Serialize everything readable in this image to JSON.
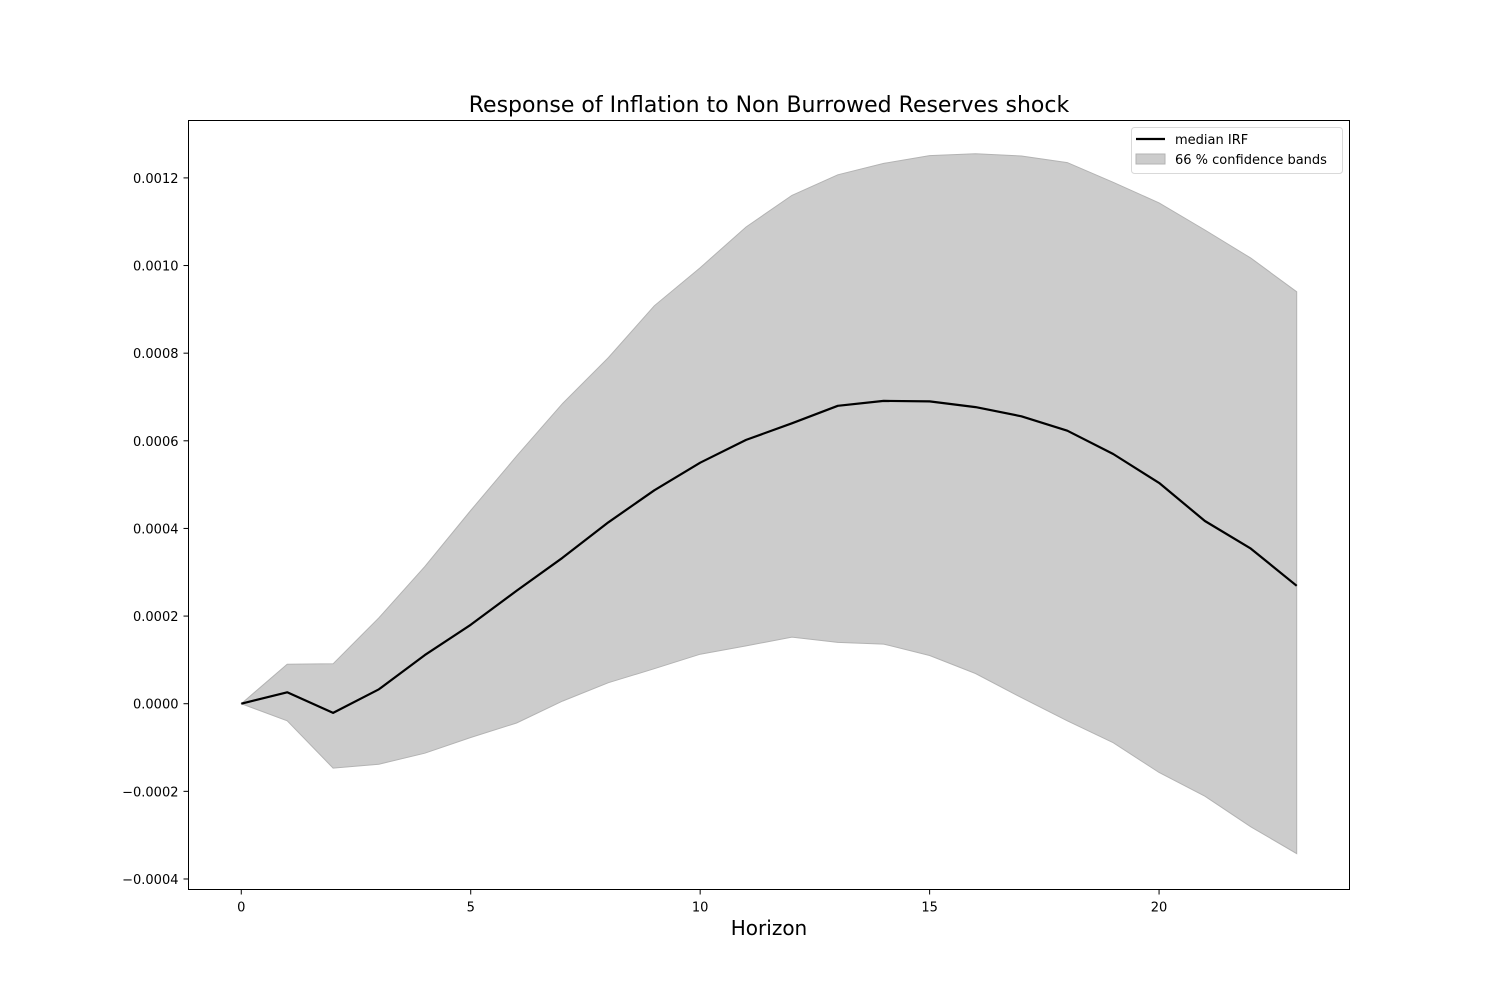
{
  "chart_data": {
    "type": "line",
    "title": "Response of Inflation to Non Burrowed Reserves shock",
    "xlabel": "Horizon",
    "ylabel": "",
    "xlim": [
      -1.15,
      24.15
    ],
    "ylim": [
      -0.000424,
      0.001331
    ],
    "grid": false,
    "legend_placement": "top-right",
    "x": [
      0,
      1,
      2,
      3,
      4,
      5,
      6,
      7,
      8,
      9,
      10,
      11,
      12,
      13,
      14,
      15,
      16,
      17,
      18,
      19,
      20,
      21,
      22,
      23
    ],
    "series": [
      {
        "name": "median IRF",
        "kind": "line",
        "color": "#000000",
        "values": [
          0.0,
          2.6e-05,
          -2.1e-05,
          3.3e-05,
          0.000111,
          0.00018,
          0.000258,
          0.000333,
          0.000414,
          0.000487,
          0.00055,
          0.000602,
          0.00064,
          0.00068,
          0.000691,
          0.00069,
          0.000677,
          0.000656,
          0.000623,
          0.00057,
          0.000504,
          0.000417,
          0.000354,
          0.000269
        ]
      },
      {
        "name": "66 % confidence bands",
        "kind": "band",
        "color": "#cccccc",
        "edge_color": "#b3b3b3",
        "lower": [
          0.0,
          -3.9e-05,
          -0.000147,
          -0.000138,
          -0.000113,
          -7.7e-05,
          -4.4e-05,
          6e-06,
          4.8e-05,
          8e-05,
          0.000113,
          0.000132,
          0.000152,
          0.00014,
          0.000136,
          0.00011,
          6.9e-05,
          1.4e-05,
          -3.9e-05,
          -8.9e-05,
          -0.000157,
          -0.000211,
          -0.000281,
          -0.000342
        ],
        "upper": [
          0.0,
          9e-05,
          9.1e-05,
          0.000196,
          0.000313,
          0.000441,
          0.000565,
          0.000685,
          0.00079,
          0.000908,
          0.000995,
          0.001088,
          0.00116,
          0.001207,
          0.001233,
          0.001251,
          0.001255,
          0.00125,
          0.001235,
          0.00119,
          0.001143,
          0.001081,
          0.001017,
          0.00094
        ]
      }
    ],
    "x_ticks": [
      0,
      5,
      10,
      15,
      20
    ],
    "y_ticks": [
      -0.0004,
      -0.0002,
      0.0,
      0.0002,
      0.0004,
      0.0006,
      0.0008,
      0.001,
      0.0012
    ],
    "y_tick_labels": [
      "−0.0004",
      "−0.0002",
      "0.0000",
      "0.0002",
      "0.0004",
      "0.0006",
      "0.0008",
      "0.0010",
      "0.0012"
    ]
  }
}
